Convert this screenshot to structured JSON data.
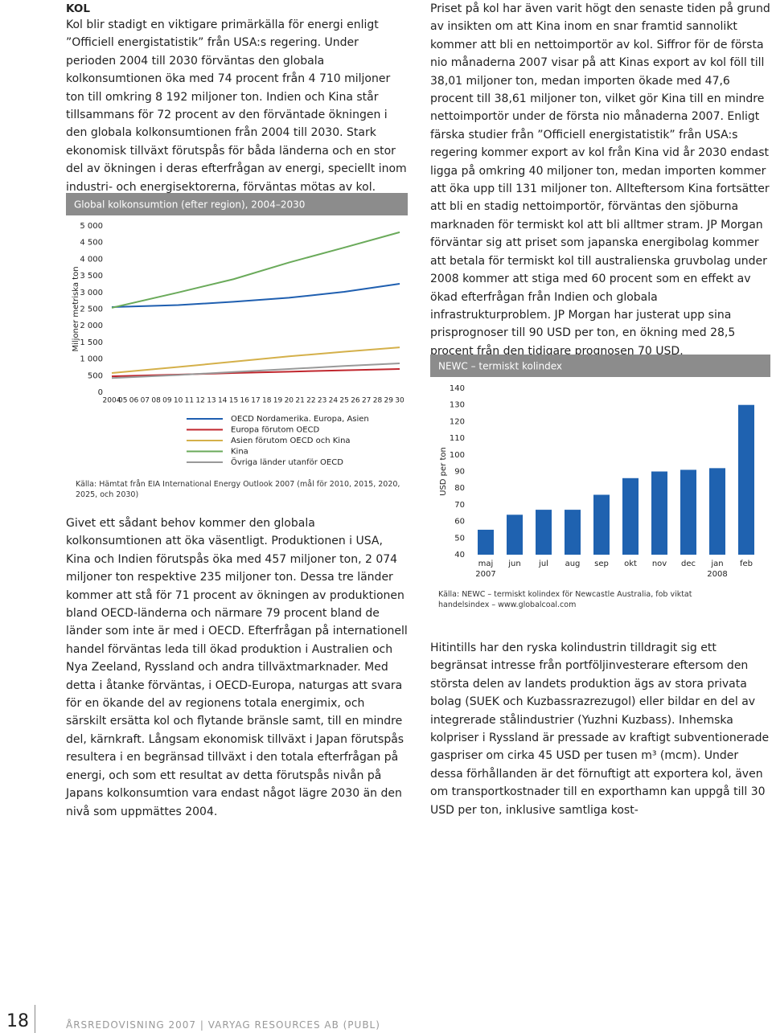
{
  "header": {
    "section": "KOL"
  },
  "left_column": {
    "paragraphs": [
      "Kol blir stadigt en viktigare primärkälla för energi enligt ”Officiell energistatistik” från USA:s regering. Under perioden 2004 till 2030 förväntas den globala kolkonsumtionen öka med 74 procent från 4 710 miljoner ton till omkring 8 192 miljoner ton. Indien och Kina står tillsammans för 72 procent av den förväntade ökningen i den globala kolkonsumtionen från 2004 till 2030. Stark ekonomisk tillväxt förutspås för båda länderna och en stor del av ökningen i deras efterfrågan av energi, speciellt inom industri- och energisektorerna, förväntas mötas av kol.",
      "Givet ett sådant behov kommer den globala kolkonsumtionen att öka väsentligt. Produktionen i USA, Kina och Indien förutspås öka med 457 miljoner ton, 2 074 miljoner ton respektive 235 miljoner ton. Dessa tre länder kommer att stå för 71 procent av ökningen av produktionen bland OECD-länderna och närmare 79 procent bland de länder som inte är med i OECD. Efterfrågan på internationell handel förväntas leda till ökad produktion i Australien och Nya Zeeland, Ryssland och andra tillväxtmarknader. Med detta i åtanke förväntas, i OECD-Europa, naturgas att svara för en ökande del av regionens totala energimix, och särskilt ersätta kol och flytande bränsle samt, till en mindre del, kärnkraft. Långsam ekonomisk tillväxt i Japan förutspås resultera i en begränsad tillväxt i den totala efterfrågan på energi, och som ett resultat av detta förutspås nivån på Japans kolkonsumtion vara endast något lägre 2030 än den nivå som uppmättes 2004."
    ]
  },
  "right_column": {
    "paragraphs": [
      "Priset på kol har även varit högt den senaste tiden på grund av insikten om att Kina inom en snar framtid sannolikt kommer att bli en nettoimportör av kol. Siffror för de första nio månaderna 2007 visar på att Kinas export av kol föll till 38,01 miljoner ton, medan importen ökade med 47,6 procent till 38,61 miljoner ton, vilket gör Kina till en mindre nettoimportör under de första nio månaderna 2007. Enligt färska studier från ”Officiell energistatistik” från USA:s regering kommer export av kol från Kina vid år 2030 endast ligga på omkring 40 miljoner ton, medan importen kommer att öka upp till 131 miljoner ton. Alltefter­som Kina fortsätter att bli en stadig nettoimportör, förväntas den sjöburna marknaden för termiskt kol att bli alltmer stram. JP Morgan förväntar sig att priset som japanska energibolag kommer att betala för termiskt kol till australienska gruvbolag under 2008 kommer att stiga med 60 procent som en effekt av ökad efterfrågan från Indien och globala infrastrukturproblem. JP Morgan har justerat upp sina prisprognoser till 90 USD per ton, en ökning med 28,5 procent från den tidigare prognosen 70 USD.",
      "Hitintills har den ryska kolindustrin tilldragit sig ett begränsat intresse från portföljinvesterare eftersom den största delen av landets produktion ägs av stora privata bolag (SUEK och Kuzbassrazrezugol) eller bildar en del av integrerade stålindustrier (Yuzhni Kuzbass). Inhemska kolpriser i Ryssland är pressade av kraftigt subventionerade gaspriser om cirka 45 USD per tusen m³ (mcm). Under dessa förhållanden är det förnuftigt att exportera kol, även om transportkostnader till en exporthamn kan uppgå till 30 USD per ton, inklusive samtliga kost-"
    ]
  },
  "chart_data": [
    {
      "type": "line",
      "title": "Global kolkonsumtion (efter region), 2004–2030",
      "y_label": "Miljoner metriska ton",
      "source": "Källa: Hämtat från EIA International Energy Outlook 2007 (mål för 2010, 2015, 2020, 2025, och 2030)",
      "x": [
        2004,
        2010,
        2015,
        2020,
        2025,
        2030
      ],
      "xlim": [
        2004,
        2030
      ],
      "xticks": [
        2004,
        {
          "value": 2005,
          "label": "05"
        },
        {
          "value": 2006,
          "label": "06"
        },
        {
          "value": 2007,
          "label": "07"
        },
        {
          "value": 2008,
          "label": "08"
        },
        {
          "value": 2009,
          "label": "09"
        },
        {
          "value": 2010,
          "label": "10"
        },
        {
          "value": 2011,
          "label": "11"
        },
        {
          "value": 2012,
          "label": "12"
        },
        {
          "value": 2013,
          "label": "13"
        },
        {
          "value": 2014,
          "label": "14"
        },
        {
          "value": 2015,
          "label": "15"
        },
        {
          "value": 2016,
          "label": "16"
        },
        {
          "value": 2017,
          "label": "17"
        },
        {
          "value": 2018,
          "label": "18"
        },
        {
          "value": 2019,
          "label": "19"
        },
        {
          "value": 2020,
          "label": "20"
        },
        {
          "value": 2021,
          "label": "21"
        },
        {
          "value": 2022,
          "label": "22"
        },
        {
          "value": 2023,
          "label": "23"
        },
        {
          "value": 2024,
          "label": "24"
        },
        {
          "value": 2025,
          "label": "25"
        },
        {
          "value": 2026,
          "label": "26"
        },
        {
          "value": 2027,
          "label": "27"
        },
        {
          "value": 2028,
          "label": "28"
        },
        {
          "value": 2029,
          "label": "29"
        },
        {
          "value": 2030,
          "label": "30"
        }
      ],
      "ylim": [
        0,
        5000
      ],
      "yticks": [
        0,
        500,
        {
          "value": 1000,
          "label": "1 000"
        },
        {
          "value": 1500,
          "label": "1 500"
        },
        {
          "value": 2000,
          "label": "2 000"
        },
        {
          "value": 2500,
          "label": "2 500"
        },
        {
          "value": 3000,
          "label": "3 000"
        },
        {
          "value": 3500,
          "label": "3 500"
        },
        {
          "value": 4000,
          "label": "4 000"
        },
        {
          "value": 4500,
          "label": "4 500"
        },
        {
          "value": 5000,
          "label": "5 000"
        }
      ],
      "grid": false,
      "series": [
        {
          "name": "OECD Nordamerika. Europa, Asien",
          "color": "#1f5fb0",
          "values": [
            2560,
            2620,
            2720,
            2840,
            3020,
            3260
          ]
        },
        {
          "name": "Europa förutom OECD",
          "color": "#c0262d",
          "values": [
            480,
            530,
            580,
            620,
            660,
            700
          ]
        },
        {
          "name": "Asien förutom OECD och Kina",
          "color": "#d4b04a",
          "values": [
            580,
            760,
            920,
            1080,
            1220,
            1350
          ]
        },
        {
          "name": "Kina",
          "color": "#6aaa5a",
          "values": [
            2540,
            3000,
            3400,
            3900,
            4350,
            4810
          ]
        },
        {
          "name": "Övriga länder utanför OECD",
          "color": "#999999",
          "values": [
            430,
            520,
            610,
            700,
            790,
            870
          ]
        }
      ]
    },
    {
      "type": "bar",
      "title": "NEWC – termiskt kolindex",
      "y_label": "USD per ton",
      "source": "Källa: NEWC – termiskt kolindex för Newcastle Australia, fob viktat handelsindex – www.globalcoal.com",
      "categories": [
        "maj 2007",
        "jun",
        "jul",
        "aug",
        "sep",
        "okt",
        "nov",
        "dec",
        "jan 2008",
        "feb"
      ],
      "values": [
        55,
        64,
        67,
        67,
        76,
        86,
        90,
        91,
        92,
        130
      ],
      "color": "#1f62b0",
      "ylim": [
        40,
        140
      ],
      "yticks": [
        40,
        50,
        60,
        70,
        80,
        90,
        100,
        110,
        120,
        130,
        140
      ],
      "grid": false
    }
  ],
  "footer": {
    "page_number": "18",
    "text": "ÅRSREDOVISNING 2007 | VARYAG RESOURCES AB (PUBL)"
  }
}
